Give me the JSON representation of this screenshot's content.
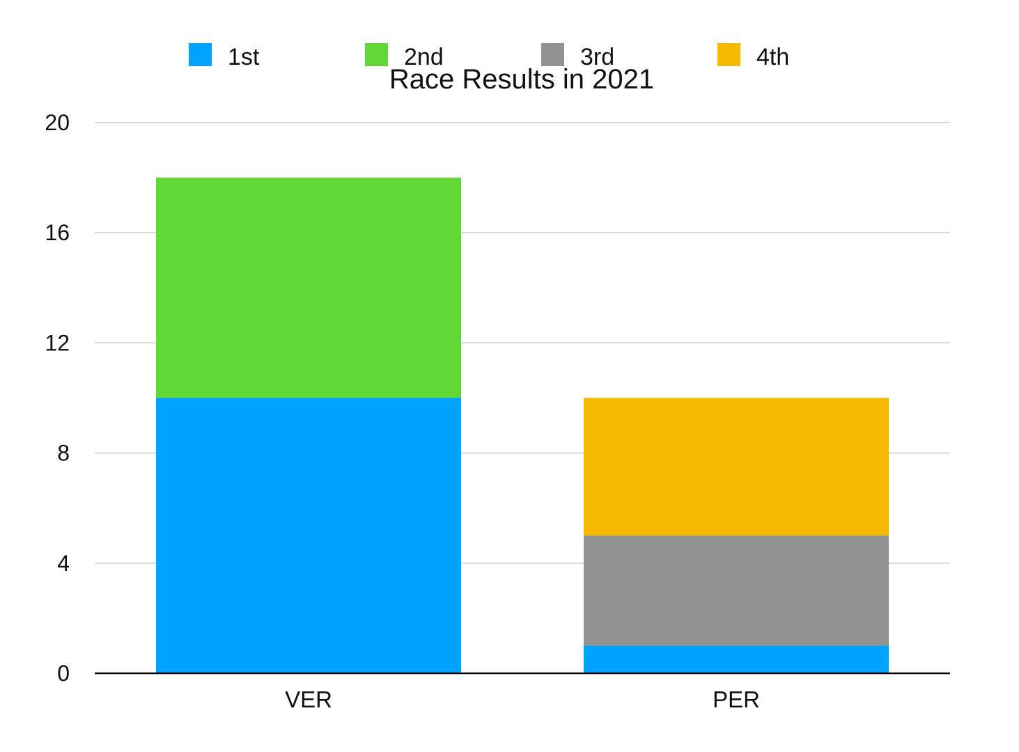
{
  "chart_data": {
    "type": "bar",
    "stacked": true,
    "title": "Race Results in 2021",
    "xlabel": "",
    "ylabel": "",
    "categories": [
      "VER",
      "PER"
    ],
    "series": [
      {
        "name": "1st",
        "color": "#00A2FF",
        "values": [
          10,
          1
        ]
      },
      {
        "name": "2nd",
        "color": "#61D836",
        "values": [
          8,
          0
        ]
      },
      {
        "name": "3rd",
        "color": "#929292",
        "values": [
          0,
          4
        ]
      },
      {
        "name": "4th",
        "color": "#F5BA00",
        "values": [
          0,
          5
        ]
      }
    ],
    "ylim": [
      0,
      20
    ],
    "yticks": [
      "0",
      "4",
      "8",
      "12",
      "16",
      "20"
    ],
    "grid": true,
    "legend_position": "top"
  }
}
